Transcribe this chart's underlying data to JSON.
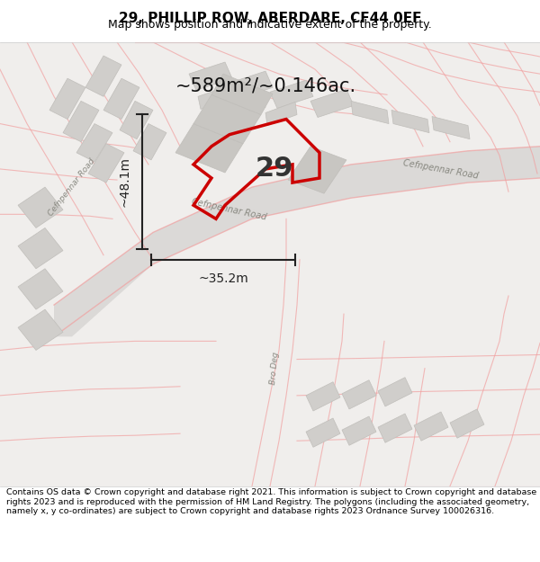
{
  "title": "29, PHILLIP ROW, ABERDARE, CF44 0EF",
  "subtitle": "Map shows position and indicative extent of the property.",
  "footer": "Contains OS data © Crown copyright and database right 2021. This information is subject to Crown copyright and database rights 2023 and is reproduced with the permission of HM Land Registry. The polygons (including the associated geometry, namely x, y co-ordinates) are subject to Crown copyright and database rights 2023 Ordnance Survey 100026316.",
  "area_text": "~589m²/~0.146ac.",
  "dim_vertical": "~48.1m",
  "dim_horizontal": "~35.2m",
  "property_number": "29",
  "background_color": "#ffffff",
  "map_bg_color": "#f5f5f5",
  "road_color": "#e8e8e8",
  "building_color": "#d8d8d8",
  "plot_line_color": "#cc0000",
  "road_line_color": "#f0a0a0",
  "dim_line_color": "#222222"
}
